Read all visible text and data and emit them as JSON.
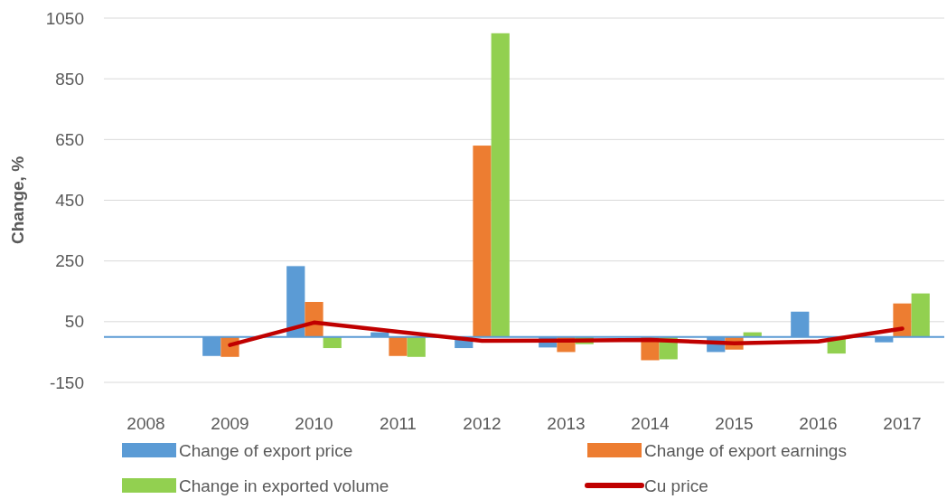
{
  "chart_data": {
    "type": "bar",
    "ylabel": "Change, %",
    "categories": [
      "2008",
      "2009",
      "2010",
      "2011",
      "2012",
      "2013",
      "2014",
      "2015",
      "2016",
      "2017"
    ],
    "series": [
      {
        "name": "Change of export price",
        "color": "#5b9bd5",
        "values": [
          null,
          -63,
          233,
          15,
          -37,
          -35,
          null,
          -50,
          83,
          -18
        ]
      },
      {
        "name": "Change of export earnings",
        "color": "#ed7d31",
        "values": [
          null,
          -66,
          115,
          -63,
          630,
          -50,
          -77,
          -42,
          null,
          110
        ]
      },
      {
        "name": "Change in exported volume",
        "color": "#92d050",
        "values": [
          null,
          null,
          -37,
          -66,
          1000,
          -24,
          -74,
          15,
          -55,
          143
        ]
      },
      {
        "name": "Cu price",
        "type": "line",
        "color": "#c00000",
        "values": [
          null,
          -27,
          47,
          17,
          -13,
          -12,
          -10,
          -21,
          -15,
          27
        ]
      }
    ],
    "ylim": [
      -150,
      1050
    ],
    "yticks": [
      -150,
      50,
      250,
      450,
      650,
      850,
      1050
    ],
    "grid": "y",
    "legend": "bottom",
    "ref_lines": [
      {
        "axis": "y",
        "value": 0,
        "color": "#5b9bd5"
      }
    ]
  }
}
